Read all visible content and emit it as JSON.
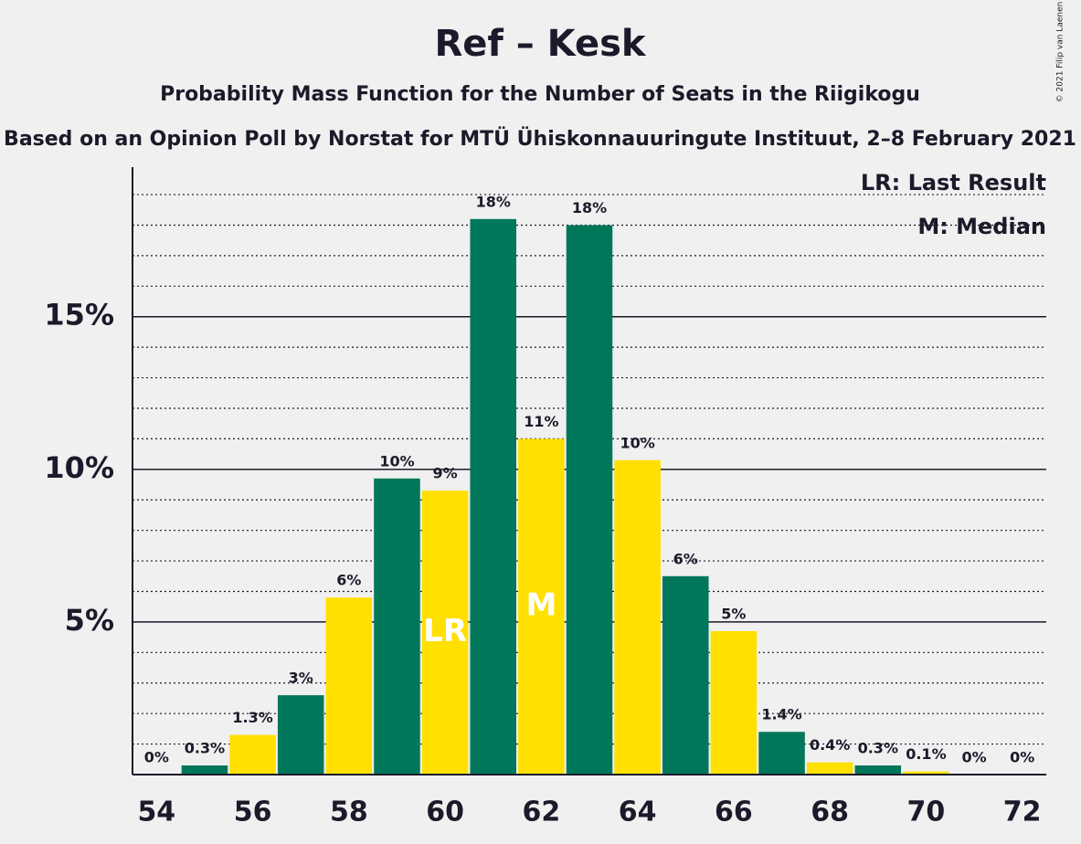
{
  "chart_data": {
    "type": "bar",
    "title": "Ref – Kesk",
    "subtitle": "Probability Mass Function for the Number of Seats in the Riigikogu",
    "subtitle2": "Based on an Opinion Poll by Norstat for MTÜ Ühiskonnauuringute Instituut, 2–8 February 2021",
    "copyright": "© 2021 Filip van Laenen",
    "x": [
      54,
      55,
      56,
      57,
      58,
      59,
      60,
      61,
      62,
      63,
      64,
      65,
      66,
      67,
      68,
      69,
      70,
      71,
      72
    ],
    "values": [
      0,
      0.3,
      1.3,
      2.6,
      5.8,
      9.7,
      9.3,
      18.2,
      11.0,
      18.0,
      10.3,
      6.5,
      4.7,
      1.4,
      0.4,
      0.3,
      0.1,
      0,
      0
    ],
    "value_labels": [
      "0%",
      "0.3%",
      "1.3%",
      "3%",
      "6%",
      "10%",
      "9%",
      "18%",
      "11%",
      "18%",
      "10%",
      "6%",
      "5%",
      "1.4%",
      "0.4%",
      "0.3%",
      "0.1%",
      "0%",
      "0%"
    ],
    "colors": [
      "#00775a",
      "#00775a",
      "#ffe000",
      "#00775a",
      "#ffe000",
      "#00775a",
      "#ffe000",
      "#00775a",
      "#ffe000",
      "#00775a",
      "#ffe000",
      "#00775a",
      "#ffe000",
      "#00775a",
      "#ffe000",
      "#00775a",
      "#ffe000",
      "#00775a",
      "#ffe000"
    ],
    "xlim": [
      53.5,
      72.5
    ],
    "xticks": [
      54,
      56,
      58,
      60,
      62,
      64,
      66,
      68,
      70,
      72
    ],
    "ylim": [
      0,
      19.9
    ],
    "yticks": [
      {
        "value": 5,
        "label": "5%"
      },
      {
        "value": 10,
        "label": "10%"
      },
      {
        "value": 15,
        "label": "15%"
      }
    ],
    "minor_yticks": [
      1,
      2,
      3,
      4,
      6,
      7,
      8,
      9,
      11,
      12,
      13,
      14,
      16,
      17,
      18,
      19
    ],
    "grid": true,
    "annotations": [
      {
        "x": 60,
        "text": "LR"
      },
      {
        "x": 62,
        "text": "M"
      }
    ],
    "legend_notes": [
      "LR: Last Result",
      "M: Median"
    ]
  }
}
